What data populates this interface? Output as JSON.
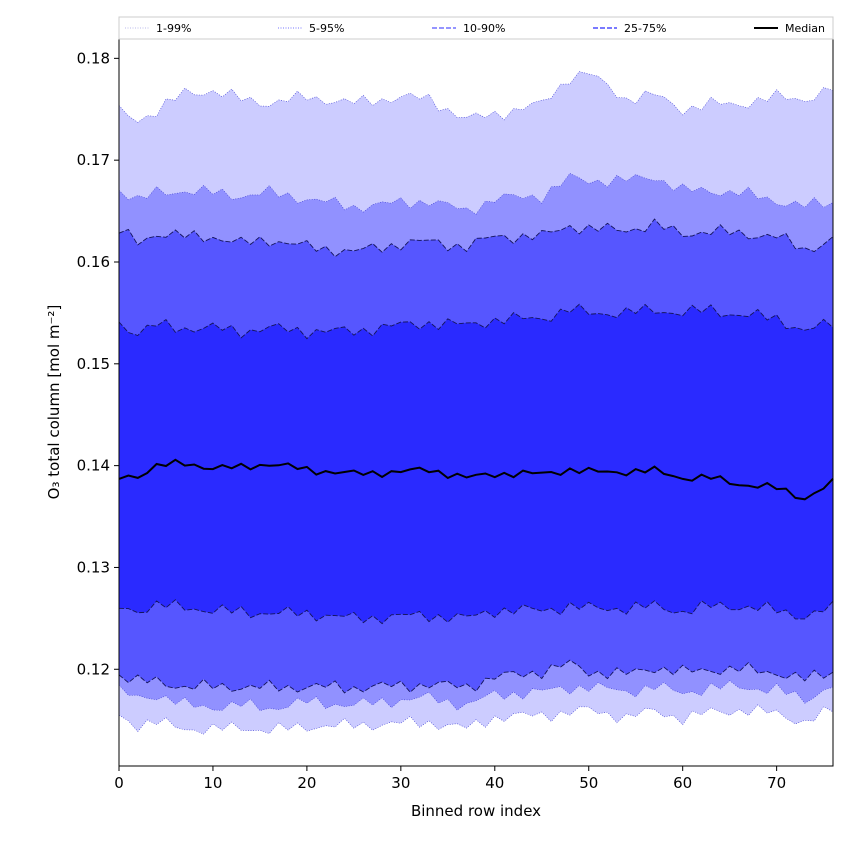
{
  "chart_data": {
    "type": "area",
    "xlabel": "Binned row index",
    "ylabel": "O₃ total column [mol m⁻²]",
    "xlim": [
      0,
      76
    ],
    "ylim": [
      0.1105,
      0.1819
    ],
    "x_ticks": [
      0,
      10,
      20,
      30,
      40,
      50,
      60,
      70
    ],
    "y_ticks": [
      0.12,
      0.13,
      0.14,
      0.15,
      0.16,
      0.17,
      0.18
    ],
    "legend_placement": "top",
    "x_knots": [
      0,
      2,
      4,
      7,
      10,
      13,
      16,
      20,
      25,
      30,
      33,
      37,
      40,
      45,
      48,
      50,
      54,
      57,
      60,
      63,
      66,
      70,
      73,
      76
    ],
    "series": [
      {
        "name": "1-99%",
        "style": "dotted",
        "color": "#ccccff",
        "lower": [
          0.1155,
          0.1145,
          0.1148,
          0.1142,
          0.1141,
          0.1143,
          0.114,
          0.1144,
          0.1145,
          0.1147,
          0.1148,
          0.1142,
          0.1153,
          0.1155,
          0.1158,
          0.116,
          0.1153,
          0.1159,
          0.1152,
          0.1158,
          0.116,
          0.1157,
          0.1148,
          0.116
        ],
        "upper": [
          0.1748,
          0.174,
          0.1748,
          0.1766,
          0.1768,
          0.176,
          0.1756,
          0.1762,
          0.1756,
          0.1762,
          0.176,
          0.174,
          0.1745,
          0.1755,
          0.1782,
          0.1785,
          0.176,
          0.1764,
          0.175,
          0.1755,
          0.1755,
          0.1762,
          0.176,
          0.177
        ]
      },
      {
        "name": "5-95%",
        "style": "dotted",
        "color": "#9191ff",
        "lower": [
          0.1178,
          0.1172,
          0.1175,
          0.1165,
          0.1163,
          0.1165,
          0.1162,
          0.1168,
          0.1165,
          0.117,
          0.1172,
          0.1165,
          0.1175,
          0.1178,
          0.1182,
          0.1183,
          0.1178,
          0.1183,
          0.1177,
          0.1182,
          0.1183,
          0.118,
          0.117,
          0.1185
        ],
        "upper": [
          0.1672,
          0.166,
          0.1668,
          0.167,
          0.1668,
          0.1665,
          0.1668,
          0.1662,
          0.1654,
          0.1658,
          0.166,
          0.165,
          0.1662,
          0.1665,
          0.1682,
          0.168,
          0.168,
          0.1684,
          0.167,
          0.167,
          0.1668,
          0.166,
          0.1655,
          0.1658
        ]
      },
      {
        "name": "10-90%",
        "style": "dashed",
        "color": "#5656ff",
        "lower": [
          0.1195,
          0.1188,
          0.1188,
          0.1183,
          0.1183,
          0.1183,
          0.1182,
          0.1183,
          0.1182,
          0.1184,
          0.1185,
          0.1183,
          0.1192,
          0.1198,
          0.1205,
          0.1198,
          0.1195,
          0.1202,
          0.1197,
          0.12,
          0.12,
          0.1197,
          0.119,
          0.1198
        ],
        "upper": [
          0.163,
          0.162,
          0.1628,
          0.1625,
          0.1625,
          0.1618,
          0.1622,
          0.1615,
          0.161,
          0.1618,
          0.162,
          0.1615,
          0.1625,
          0.1625,
          0.1636,
          0.1632,
          0.1632,
          0.1636,
          0.1628,
          0.163,
          0.1628,
          0.1625,
          0.1612,
          0.1622
        ]
      },
      {
        "name": "25-75%",
        "style": "dashed",
        "color": "#2a2aff",
        "lower": [
          0.1262,
          0.1258,
          0.1262,
          0.1262,
          0.1257,
          0.1257,
          0.1255,
          0.1255,
          0.125,
          0.1252,
          0.1253,
          0.125,
          0.1258,
          0.1258,
          0.1262,
          0.126,
          0.126,
          0.1262,
          0.1257,
          0.1262,
          0.1262,
          0.1258,
          0.1252,
          0.126
        ],
        "upper": [
          0.154,
          0.153,
          0.1538,
          0.1535,
          0.1535,
          0.1532,
          0.1535,
          0.1532,
          0.1532,
          0.1538,
          0.154,
          0.1538,
          0.1543,
          0.1545,
          0.1553,
          0.155,
          0.155,
          0.1553,
          0.155,
          0.1553,
          0.1548,
          0.1545,
          0.1532,
          0.154
        ]
      },
      {
        "name": "Median",
        "style": "solid",
        "color": "#000000",
        "values": [
          0.1388,
          0.139,
          0.14,
          0.1402,
          0.1398,
          0.1398,
          0.1402,
          0.1396,
          0.1392,
          0.1394,
          0.1396,
          0.1388,
          0.1392,
          0.1392,
          0.1396,
          0.1394,
          0.1394,
          0.1395,
          0.1388,
          0.1388,
          0.1382,
          0.1378,
          0.1368,
          0.1383
        ]
      }
    ]
  }
}
